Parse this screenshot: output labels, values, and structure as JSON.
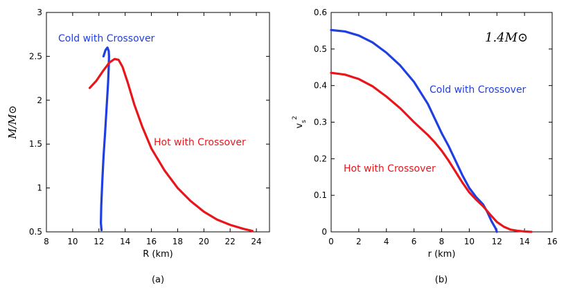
{
  "chart_data": [
    {
      "type": "line",
      "panel_label": "(a)",
      "title": "",
      "xlabel": "R (km)",
      "ylabel": "M/M⊙",
      "xlim": [
        8,
        25
      ],
      "ylim": [
        0.5,
        3
      ],
      "xticks": [
        "8",
        "10",
        "12",
        "14",
        "16",
        "18",
        "20",
        "22",
        "24"
      ],
      "yticks": [
        "0.5",
        "1",
        "1.5",
        "2",
        "2.5",
        "3"
      ],
      "grid": false,
      "series": [
        {
          "name": "Cold with Crossover",
          "color": "#1f3fe0",
          "x": [
            12.2,
            12.15,
            12.18,
            12.25,
            12.35,
            12.48,
            12.6,
            12.7,
            12.75,
            12.77,
            12.75,
            12.65,
            12.5,
            12.35
          ],
          "y": [
            0.52,
            0.6,
            0.8,
            1.05,
            1.35,
            1.65,
            1.95,
            2.2,
            2.38,
            2.5,
            2.56,
            2.6,
            2.57,
            2.5
          ]
        },
        {
          "name": "Hot with Crossover",
          "color": "#e8161b",
          "x": [
            11.3,
            11.8,
            12.3,
            12.8,
            13.2,
            13.5,
            13.8,
            14.2,
            14.7,
            15.3,
            16.0,
            17.0,
            18.0,
            19.0,
            20.0,
            21.0,
            22.0,
            23.0,
            23.7
          ],
          "y": [
            2.14,
            2.22,
            2.33,
            2.43,
            2.47,
            2.46,
            2.38,
            2.2,
            1.95,
            1.7,
            1.45,
            1.2,
            1.0,
            0.85,
            0.73,
            0.64,
            0.58,
            0.535,
            0.51
          ]
        }
      ],
      "annotations": [
        "Cold with Crossover",
        "Hot with Crossover"
      ]
    },
    {
      "type": "line",
      "panel_label": "(b)",
      "title": "",
      "inset_label": "1.4M⊙",
      "xlabel": "r (km)",
      "ylabel": "v_s^2",
      "xlim": [
        0,
        16
      ],
      "ylim": [
        0,
        0.6
      ],
      "xticks": [
        "0",
        "2",
        "4",
        "6",
        "8",
        "10",
        "12",
        "14",
        "16"
      ],
      "yticks": [
        "0",
        "0.1",
        "0.2",
        "0.3",
        "0.4",
        "0.5",
        "0.6"
      ],
      "grid": false,
      "series": [
        {
          "name": "Cold with Crossover",
          "color": "#1f3fe0",
          "x": [
            0,
            1,
            2,
            3,
            4,
            5,
            6,
            7,
            7.5,
            8,
            8.5,
            9,
            9.5,
            10,
            10.5,
            11,
            11.3,
            11.6,
            11.9,
            12.0
          ],
          "y": [
            0.552,
            0.548,
            0.537,
            0.518,
            0.49,
            0.455,
            0.41,
            0.35,
            0.31,
            0.27,
            0.235,
            0.195,
            0.155,
            0.12,
            0.095,
            0.075,
            0.055,
            0.03,
            0.01,
            0.0
          ]
        },
        {
          "name": "Hot with Crossover",
          "color": "#e8161b",
          "x": [
            0,
            1,
            2,
            3,
            4,
            5,
            6,
            7,
            7.5,
            8,
            8.5,
            9,
            9.5,
            10,
            10.5,
            11,
            11.5,
            12,
            12.5,
            13,
            13.5,
            14,
            14.5
          ],
          "y": [
            0.435,
            0.43,
            0.418,
            0.398,
            0.37,
            0.338,
            0.3,
            0.265,
            0.245,
            0.222,
            0.195,
            0.165,
            0.135,
            0.108,
            0.088,
            0.07,
            0.048,
            0.027,
            0.014,
            0.006,
            0.003,
            0.001,
            0.0
          ]
        }
      ],
      "annotations": [
        "Cold with Crossover",
        "Hot with Crossover"
      ]
    }
  ]
}
